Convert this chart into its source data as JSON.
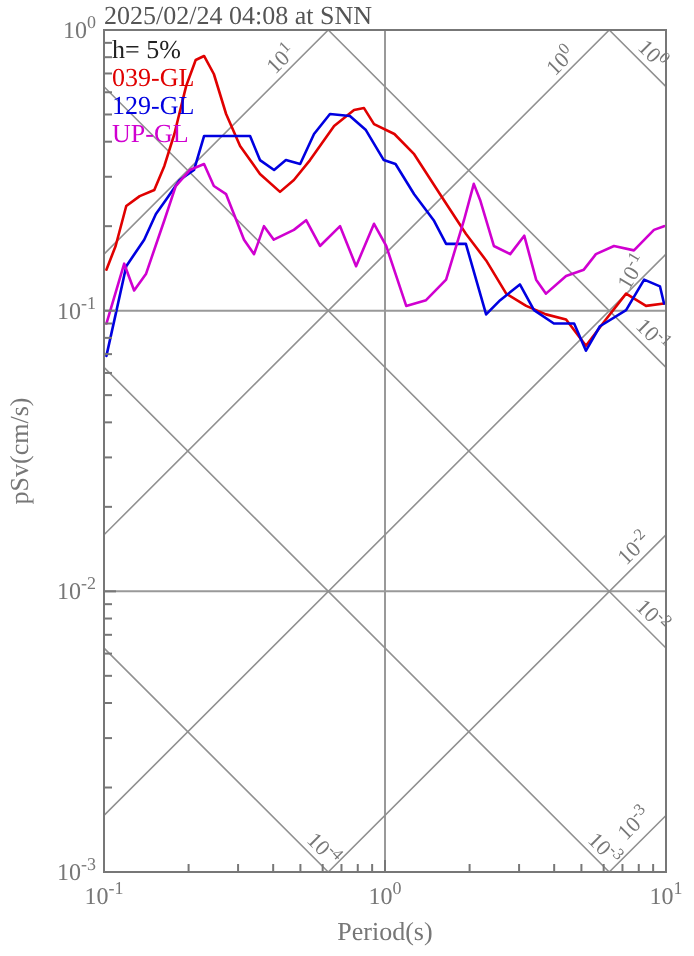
{
  "chart_data": {
    "type": "line",
    "title": "2025/02/24 04:08 at SNN",
    "xlabel": "Period(s)",
    "ylabel": "pSv(cm/s)",
    "log": "xy",
    "xlim": [
      0.1,
      10
    ],
    "ylim": [
      0.001,
      1
    ],
    "xticks": [
      {
        "value": 0.1,
        "label": "10$^{-1}$"
      },
      {
        "value": 0.2,
        "label": null
      },
      {
        "value": 0.3,
        "label": null
      },
      {
        "value": 0.4,
        "label": null
      },
      {
        "value": 0.5,
        "label": null
      },
      {
        "value": 0.6,
        "label": null
      },
      {
        "value": 0.7,
        "label": null
      },
      {
        "value": 0.8,
        "label": null
      },
      {
        "value": 0.9,
        "label": null
      },
      {
        "value": 1,
        "label": "10$^{0}$"
      },
      {
        "value": 2,
        "label": null
      },
      {
        "value": 3,
        "label": null
      },
      {
        "value": 4,
        "label": null
      },
      {
        "value": 5,
        "label": null
      },
      {
        "value": 6,
        "label": null
      },
      {
        "value": 7,
        "label": null
      },
      {
        "value": 8,
        "label": null
      },
      {
        "value": 9,
        "label": null
      },
      {
        "value": 10,
        "label": "10$^{1}$"
      }
    ],
    "yticks": [
      {
        "value": 0.001,
        "label": "10$^{-3}$"
      },
      {
        "value": 0.002,
        "label": null
      },
      {
        "value": 0.003,
        "label": null
      },
      {
        "value": 0.004,
        "label": null
      },
      {
        "value": 0.005,
        "label": null
      },
      {
        "value": 0.006,
        "label": null
      },
      {
        "value": 0.007,
        "label": null
      },
      {
        "value": 0.008,
        "label": null
      },
      {
        "value": 0.009,
        "label": null
      },
      {
        "value": 0.01,
        "label": "10$^{-2}$"
      },
      {
        "value": 0.02,
        "label": null
      },
      {
        "value": 0.03,
        "label": null
      },
      {
        "value": 0.04,
        "label": null
      },
      {
        "value": 0.05,
        "label": null
      },
      {
        "value": 0.06,
        "label": null
      },
      {
        "value": 0.07,
        "label": null
      },
      {
        "value": 0.08,
        "label": null
      },
      {
        "value": 0.09,
        "label": null
      },
      {
        "value": 0.1,
        "label": "10$^{-1}$"
      },
      {
        "value": 0.2,
        "label": null
      },
      {
        "value": 0.3,
        "label": null
      },
      {
        "value": 0.4,
        "label": null
      },
      {
        "value": 0.5,
        "label": null
      },
      {
        "value": 0.6,
        "label": null
      },
      {
        "value": 0.7,
        "label": null
      },
      {
        "value": 0.8,
        "label": null
      },
      {
        "value": 0.9,
        "label": null
      },
      {
        "value": 1,
        "label": "10$^{0}$"
      }
    ],
    "grid": true,
    "legend": "top left",
    "line_style": "solid",
    "marker": "none",
    "series": [
      {
        "name": "039-GL",
        "color": "#e00000",
        "x": [
          0.102,
          0.11,
          0.12,
          0.134,
          0.151,
          0.164,
          0.178,
          0.196,
          0.212,
          0.227,
          0.246,
          0.272,
          0.305,
          0.359,
          0.423,
          0.474,
          0.541,
          0.659,
          0.776,
          0.842,
          0.914,
          1.08,
          1.27,
          1.57,
          1.94,
          2.29,
          2.7,
          3.18,
          3.74,
          4.41,
          5.19,
          6.11,
          7.21,
          8.49,
          9.84
        ],
        "values": [
          0.14,
          0.17,
          0.236,
          0.256,
          0.269,
          0.328,
          0.426,
          0.631,
          0.782,
          0.808,
          0.697,
          0.502,
          0.386,
          0.307,
          0.265,
          0.292,
          0.344,
          0.455,
          0.519,
          0.527,
          0.462,
          0.426,
          0.361,
          0.26,
          0.188,
          0.151,
          0.115,
          0.104,
          0.097,
          0.093,
          0.075,
          0.093,
          0.115,
          0.104,
          0.106
        ]
      },
      {
        "name": "129-GL",
        "color": "#0000e0",
        "x": [
          0.102,
          0.11,
          0.12,
          0.139,
          0.153,
          0.166,
          0.186,
          0.209,
          0.227,
          0.246,
          0.331,
          0.359,
          0.403,
          0.444,
          0.499,
          0.559,
          0.637,
          0.75,
          0.855,
          0.99,
          1.09,
          1.27,
          1.49,
          1.65,
          1.94,
          2.29,
          2.57,
          3.02,
          3.39,
          3.99,
          4.71,
          5.19,
          5.82,
          7.21,
          8.36,
          9.52,
          9.84
        ],
        "values": [
          0.069,
          0.097,
          0.144,
          0.179,
          0.221,
          0.248,
          0.292,
          0.317,
          0.419,
          0.419,
          0.419,
          0.344,
          0.317,
          0.344,
          0.333,
          0.426,
          0.502,
          0.494,
          0.44,
          0.344,
          0.333,
          0.26,
          0.21,
          0.173,
          0.173,
          0.097,
          0.109,
          0.124,
          0.1005,
          0.09,
          0.09,
          0.072,
          0.088,
          0.1005,
          0.129,
          0.122,
          0.106
        ]
      },
      {
        "name": "UP-GL",
        "color": "#d000d0",
        "x": [
          0.102,
          0.118,
          0.128,
          0.141,
          0.164,
          0.18,
          0.202,
          0.227,
          0.246,
          0.272,
          0.315,
          0.342,
          0.371,
          0.402,
          0.474,
          0.524,
          0.587,
          0.692,
          0.789,
          0.914,
          1.01,
          1.19,
          1.4,
          1.65,
          1.91,
          2.07,
          2.18,
          2.44,
          2.79,
          3.13,
          3.45,
          3.74,
          4.41,
          5.1,
          5.63,
          6.53,
          7.69,
          9.06,
          9.84
        ],
        "values": [
          0.09,
          0.147,
          0.118,
          0.135,
          0.21,
          0.278,
          0.317,
          0.333,
          0.278,
          0.26,
          0.179,
          0.159,
          0.2,
          0.179,
          0.194,
          0.21,
          0.17,
          0.2,
          0.144,
          0.204,
          0.17,
          0.104,
          0.109,
          0.129,
          0.21,
          0.283,
          0.248,
          0.17,
          0.159,
          0.185,
          0.129,
          0.115,
          0.133,
          0.14,
          0.159,
          0.17,
          0.164,
          0.194,
          0.2
        ]
      },
      {
        "color": "#909090",
        "x": [
          0.1,
          0.628
        ],
        "values": [
          0.159,
          1
        ]
      },
      {
        "color": "#909090",
        "x": [
          0.1,
          6.28
        ],
        "values": [
          0.0159,
          1
        ]
      },
      {
        "color": "#909090",
        "x": [
          0.1,
          10
        ],
        "values": [
          0.00159,
          0.159
        ]
      },
      {
        "color": "#909090",
        "x": [
          0.628,
          10
        ],
        "values": [
          0.001,
          0.0159
        ]
      },
      {
        "color": "#909090",
        "x": [
          6.28,
          10
        ],
        "values": [
          0.001,
          0.00159
        ]
      },
      {
        "color": "#909090",
        "x": [
          6.28,
          10
        ],
        "values": [
          1,
          0.628
        ]
      },
      {
        "color": "#909090",
        "x": [
          0.628,
          10
        ],
        "values": [
          1,
          0.0628
        ]
      },
      {
        "color": "#909090",
        "x": [
          0.1,
          10
        ],
        "values": [
          0.628,
          0.00628
        ]
      },
      {
        "color": "#909090",
        "x": [
          0.1,
          6.28
        ],
        "values": [
          0.0628,
          0.001
        ]
      },
      {
        "color": "#909090",
        "x": [
          0.1,
          0.628
        ],
        "values": [
          0.00628,
          0.001
        ]
      }
    ],
    "annotations": [
      "h= 5%",
      {
        "text": "10$^{1}$",
        "x": 0.46,
        "y": 0.73
      },
      {
        "text": "10$^{0}$",
        "x": 4.55,
        "y": 0.72
      },
      {
        "text": "10$^{0}$",
        "x": 8.3,
        "y": 0.76
      },
      {
        "text": "10$^{-1}$",
        "x": 8.3,
        "y": 0.13
      },
      {
        "text": "10$^{-1}$",
        "x": 8.3,
        "y": 0.076
      },
      {
        "text": "10$^{-2}$",
        "x": 8.3,
        "y": 0.0132
      },
      {
        "text": "10$^{-2}$",
        "x": 8.3,
        "y": 0.0076
      },
      {
        "text": "10$^{-3}$",
        "x": 8.3,
        "y": 0.00138
      },
      {
        "text": "10$^{-3}$",
        "x": 5.6,
        "y": 0.00112
      },
      {
        "text": "10$^{-4}$",
        "x": 0.56,
        "y": 0.00112
      }
    ]
  }
}
